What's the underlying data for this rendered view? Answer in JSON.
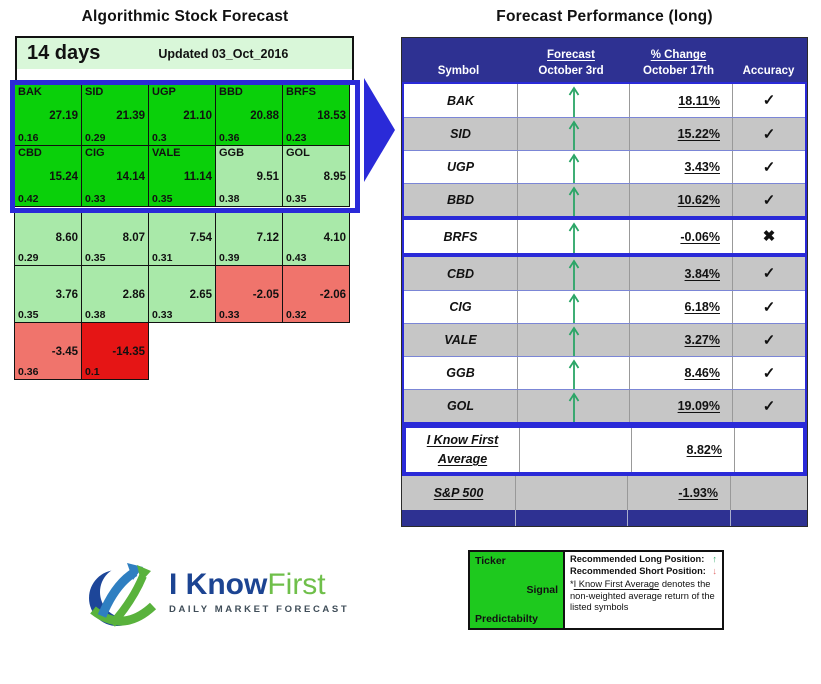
{
  "colors": {
    "navy": "#2e3192",
    "blue": "#2a2ad8",
    "bright_green": "#0ad00a",
    "light_green": "#a9e9a9",
    "pale_green": "#d9f7d9",
    "light_red": "#f0746c",
    "bright_red": "#e51515",
    "gray_row": "#c6c6c6",
    "arrow_green": "#2aa566",
    "arrow_red": "#e06666",
    "legend_green": "#1ec91e"
  },
  "chart_data": [
    {
      "type": "heatmap",
      "title": "Algorithmic Stock Forecast",
      "period": "14 days",
      "updated": "Updated 03_Oct_2016",
      "cell_fields": [
        "ticker",
        "signal",
        "predictability"
      ],
      "rows": [
        {
          "cells": [
            {
              "ticker": "BAK",
              "value": "27.19",
              "pred": "0.16",
              "tone": "bright_green"
            },
            {
              "ticker": "SID",
              "value": "21.39",
              "pred": "0.29",
              "tone": "bright_green"
            },
            {
              "ticker": "UGP",
              "value": "21.10",
              "pred": "0.3",
              "tone": "bright_green"
            },
            {
              "ticker": "BBD",
              "value": "20.88",
              "pred": "0.36",
              "tone": "bright_green"
            },
            {
              "ticker": "BRFS",
              "value": "18.53",
              "pred": "0.23",
              "tone": "bright_green"
            }
          ]
        },
        {
          "cells": [
            {
              "ticker": "CBD",
              "value": "15.24",
              "pred": "0.42",
              "tone": "bright_green"
            },
            {
              "ticker": "CIG",
              "value": "14.14",
              "pred": "0.33",
              "tone": "bright_green"
            },
            {
              "ticker": "VALE",
              "value": "11.14",
              "pred": "0.35",
              "tone": "bright_green"
            },
            {
              "ticker": "GGB",
              "value": "9.51",
              "pred": "0.38",
              "tone": "light_green"
            },
            {
              "ticker": "GOL",
              "value": "8.95",
              "pred": "0.35",
              "tone": "light_green"
            }
          ]
        },
        {
          "cells": [
            {
              "ticker": "",
              "value": "8.60",
              "pred": "0.29",
              "tone": "light_green"
            },
            {
              "ticker": "",
              "value": "8.07",
              "pred": "0.35",
              "tone": "light_green"
            },
            {
              "ticker": "",
              "value": "7.54",
              "pred": "0.31",
              "tone": "light_green"
            },
            {
              "ticker": "",
              "value": "7.12",
              "pred": "0.39",
              "tone": "light_green"
            },
            {
              "ticker": "",
              "value": "4.10",
              "pred": "0.43",
              "tone": "light_green"
            }
          ]
        },
        {
          "cells": [
            {
              "ticker": "",
              "value": "3.76",
              "pred": "0.35",
              "tone": "light_green"
            },
            {
              "ticker": "",
              "value": "2.86",
              "pred": "0.38",
              "tone": "light_green"
            },
            {
              "ticker": "",
              "value": "2.65",
              "pred": "0.33",
              "tone": "light_green"
            },
            {
              "ticker": "",
              "value": "-2.05",
              "pred": "0.33",
              "tone": "light_red"
            },
            {
              "ticker": "",
              "value": "-2.06",
              "pred": "0.32",
              "tone": "light_red"
            }
          ]
        },
        {
          "cells": [
            {
              "ticker": "",
              "value": "-3.45",
              "pred": "0.36",
              "tone": "light_red"
            },
            {
              "ticker": "",
              "value": "-14.35",
              "pred": "0.1",
              "tone": "bright_red"
            }
          ]
        }
      ]
    },
    {
      "type": "table",
      "title": "Forecast Performance (long)",
      "header": {
        "symbol": "Symbol",
        "forecast_top": "Forecast",
        "forecast_bottom": "October 3rd",
        "change_top": "% Change",
        "change_bottom": "October 17th",
        "accuracy": "Accuracy"
      },
      "rows": [
        {
          "symbol": "BAK",
          "forecast": "up",
          "change": "18.11%",
          "accuracy": "correct",
          "shade": "white",
          "group": "g1"
        },
        {
          "symbol": "SID",
          "forecast": "up",
          "change": "15.22%",
          "accuracy": "correct",
          "shade": "gray",
          "group": "g1"
        },
        {
          "symbol": "UGP",
          "forecast": "up",
          "change": "3.43%",
          "accuracy": "correct",
          "shade": "white",
          "group": "g1"
        },
        {
          "symbol": "BBD",
          "forecast": "up",
          "change": "10.62%",
          "accuracy": "correct",
          "shade": "gray",
          "group": "g1"
        },
        {
          "symbol": "BRFS",
          "forecast": "up",
          "change": "-0.06%",
          "accuracy": "incorrect",
          "shade": "white",
          "group": "g2"
        },
        {
          "symbol": "CBD",
          "forecast": "up",
          "change": "3.84%",
          "accuracy": "correct",
          "shade": "gray",
          "group": "g3"
        },
        {
          "symbol": "CIG",
          "forecast": "up",
          "change": "6.18%",
          "accuracy": "correct",
          "shade": "white",
          "group": "g3"
        },
        {
          "symbol": "VALE",
          "forecast": "up",
          "change": "3.27%",
          "accuracy": "correct",
          "shade": "gray",
          "group": "g3"
        },
        {
          "symbol": "GGB",
          "forecast": "up",
          "change": "8.46%",
          "accuracy": "correct",
          "shade": "white",
          "group": "g3"
        },
        {
          "symbol": "GOL",
          "forecast": "up",
          "change": "19.09%",
          "accuracy": "correct",
          "shade": "gray",
          "group": "g3"
        }
      ],
      "average_row": {
        "line1": "I Know First",
        "line2": "Average",
        "change": "8.82%"
      },
      "benchmark_row": {
        "symbol": "S&P 500",
        "change": "-1.93%"
      },
      "icons": {
        "check": "✓",
        "cross": "✖",
        "up_arrow": "↑",
        "down_arrow": "↓"
      }
    }
  ],
  "legend": {
    "ticker_label": "Ticker",
    "signal_label": "Signal",
    "predictability_label": "Predictabilty",
    "long_line": "Recommended Long Position:",
    "short_line": "Recommended Short Position:",
    "note_prefix": "*",
    "note_underlined": "I Know First Average",
    "note_rest": " denotes the non-weighted average return of the listed symbols",
    "up_arrow": "↑",
    "down_arrow": "↓"
  },
  "logo": {
    "part1": "I Know",
    "part2": "First",
    "subtitle": "DAILY MARKET FORECAST"
  }
}
